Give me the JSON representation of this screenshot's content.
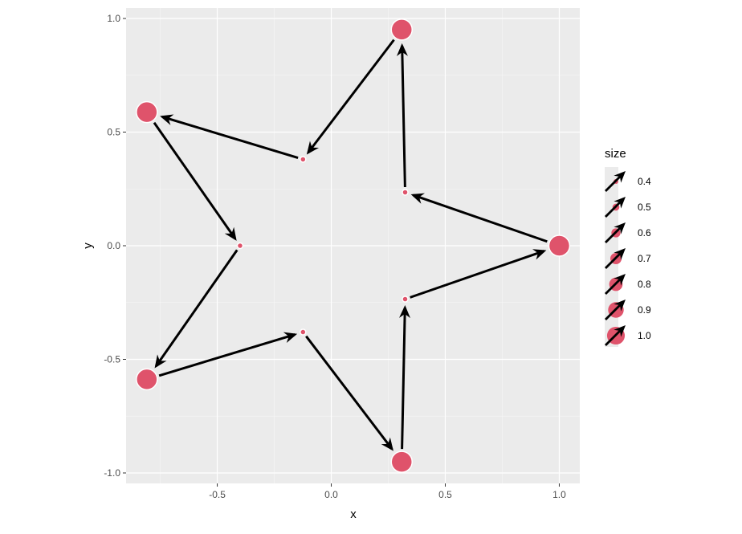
{
  "chart_data": {
    "type": "scatter",
    "xlabel": "x",
    "ylabel": "y",
    "xlim": [
      -0.9,
      1.09
    ],
    "ylim": [
      -1.046,
      1.046
    ],
    "x_ticks": [
      -0.5,
      0.0,
      0.5,
      1.0
    ],
    "x_tick_labels": [
      "-0.5",
      "0.0",
      "0.5",
      "1.0"
    ],
    "y_ticks": [
      -1.0,
      -0.5,
      0.0,
      0.5,
      1.0
    ],
    "y_tick_labels": [
      "-1.0",
      "-0.5",
      "0.0",
      "0.5",
      "1.0"
    ],
    "grid": true,
    "point_color": "#DF536B",
    "arrow_color": "#000000",
    "points": [
      {
        "x": 1.0,
        "y": 0.0,
        "size": 1.0
      },
      {
        "x": 0.324,
        "y": 0.235,
        "size": 0.4
      },
      {
        "x": 0.309,
        "y": 0.951,
        "size": 1.0
      },
      {
        "x": -0.124,
        "y": 0.38,
        "size": 0.4
      },
      {
        "x": -0.809,
        "y": 0.588,
        "size": 1.0
      },
      {
        "x": -0.4,
        "y": 0.0,
        "size": 0.4
      },
      {
        "x": -0.809,
        "y": -0.588,
        "size": 1.0
      },
      {
        "x": -0.124,
        "y": -0.38,
        "size": 0.4
      },
      {
        "x": 0.309,
        "y": -0.951,
        "size": 1.0
      },
      {
        "x": 0.324,
        "y": -0.235,
        "size": 0.4
      }
    ],
    "arrows_connect_points_in_order": true,
    "legend": {
      "title": "size",
      "position": "right",
      "entries": [
        "0.4",
        "0.5",
        "0.6",
        "0.7",
        "0.8",
        "0.9",
        "1.0"
      ],
      "values": [
        0.4,
        0.5,
        0.6,
        0.7,
        0.8,
        0.9,
        1.0
      ]
    }
  }
}
